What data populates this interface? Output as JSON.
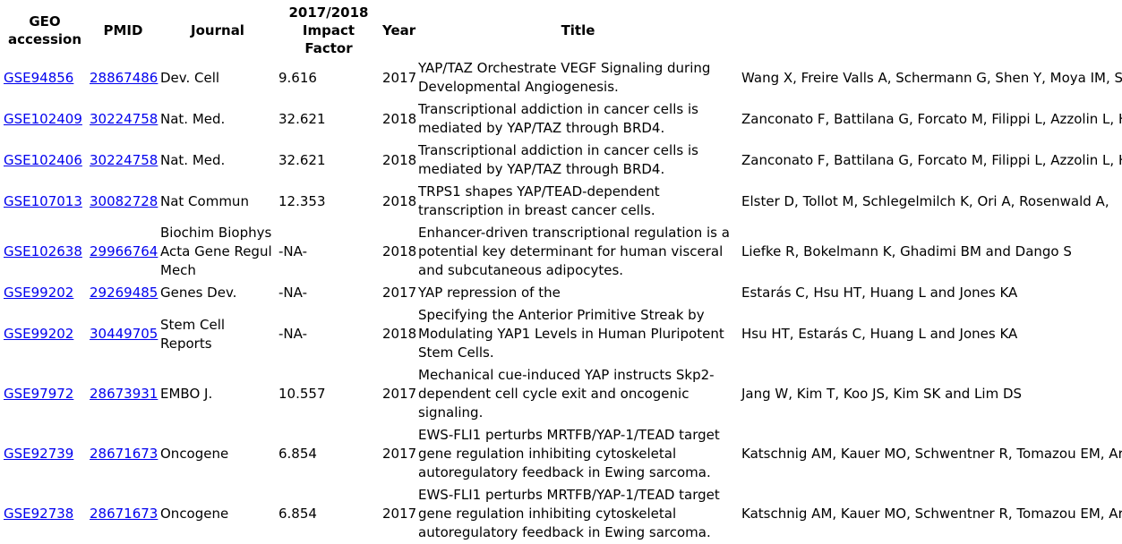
{
  "headers": {
    "geo": "GEO accession",
    "pmid": "PMID",
    "journal": "Journal",
    "impact": "2017/2018 Impact Factor",
    "year": "Year",
    "title": "Title"
  },
  "rows": [
    {
      "geo": "GSE94856",
      "pmid": "28867486",
      "journal": "Dev. Cell",
      "impact": "9.616",
      "year": "2017",
      "title": "YAP/TAZ Orchestrate VEGF Signaling during Developmental Angiogenesis.",
      "authors": "Wang X, Freire Valls A, Schermann G, Shen Y, Moya IM, Schmidt T, Fischer T, Halder G and Ruiz de Almodóvar C"
    },
    {
      "geo": "GSE102409",
      "pmid": "30224758",
      "journal": "Nat. Med.",
      "impact": "32.621",
      "year": "2018",
      "title": "Transcriptional addiction in cancer cells is mediated by YAP/TAZ through BRD4.",
      "authors": "Zanconato F, Battilana G, Forcato M, Filippi L, Azzolin L, Haendler B, Krijgsveld J, Fassan M, Bicciato S, Cordenonsi M"
    },
    {
      "geo": "GSE102406",
      "pmid": "30224758",
      "journal": "Nat. Med.",
      "impact": "32.621",
      "year": "2018",
      "title": "Transcriptional addiction in cancer cells is mediated by YAP/TAZ through BRD4.",
      "authors": "Zanconato F, Battilana G, Forcato M, Filippi L, Azzolin L, Haendler B, Krijgsveld J, Fassan M, Bicciato S, Cordenonsi M"
    },
    {
      "geo": "GSE107013",
      "pmid": "30082728",
      "journal": "Nat Commun",
      "impact": "12.353",
      "year": "2018",
      "title": "TRPS1 shapes YAP/TEAD-dependent transcription in breast cancer cells.",
      "authors": "Elster D, Tollot M, Schlegelmilch K, Ori A, Rosenwald A,"
    },
    {
      "geo": "GSE102638",
      "pmid": "29966764",
      "journal": "Biochim Biophys Acta Gene Regul Mech",
      "impact": "-NA-",
      "year": "2018",
      "title": "Enhancer-driven transcriptional regulation is a potential key determinant for human visceral and subcutaneous adipocytes.",
      "authors": "Liefke R, Bokelmann K, Ghadimi BM and Dango S"
    },
    {
      "geo": "GSE99202",
      "pmid": "29269485",
      "journal": "Genes Dev.",
      "impact": "-NA-",
      "year": "2017",
      "title": "YAP repression of the",
      "authors": "Estarás C, Hsu HT, Huang L and Jones KA"
    },
    {
      "geo": "GSE99202",
      "pmid": "30449705",
      "journal": "Stem Cell Reports",
      "impact": "-NA-",
      "year": "2018",
      "title": "Specifying the Anterior Primitive Streak by Modulating YAP1 Levels in Human Pluripotent Stem Cells.",
      "authors": "Hsu HT, Estarás C, Huang L and Jones KA"
    },
    {
      "geo": "GSE97972",
      "pmid": "28673931",
      "journal": "EMBO J.",
      "impact": "10.557",
      "year": "2017",
      "title": "Mechanical cue-induced YAP instructs Skp2-dependent cell cycle exit and oncogenic signaling.",
      "authors": "Jang W, Kim T, Koo JS, Kim SK and Lim DS"
    },
    {
      "geo": "GSE92739",
      "pmid": "28671673",
      "journal": "Oncogene",
      "impact": "6.854",
      "year": "2017",
      "title": "EWS-FLI1 perturbs MRTFB/YAP-1/TEAD target gene regulation inhibiting cytoskeletal autoregulatory feedback in Ewing sarcoma.",
      "authors": "Katschnig AM, Kauer MO, Schwentner R, Tomazou EM, Aryee DN"
    },
    {
      "geo": "GSE92738",
      "pmid": "28671673",
      "journal": "Oncogene",
      "impact": "6.854",
      "year": "2017",
      "title": "EWS-FLI1 perturbs MRTFB/YAP-1/TEAD target gene regulation inhibiting cytoskeletal autoregulatory feedback in Ewing sarcoma.",
      "authors": "Katschnig AM, Kauer MO, Schwentner R, Tomazou EM, Aryee DN"
    }
  ]
}
